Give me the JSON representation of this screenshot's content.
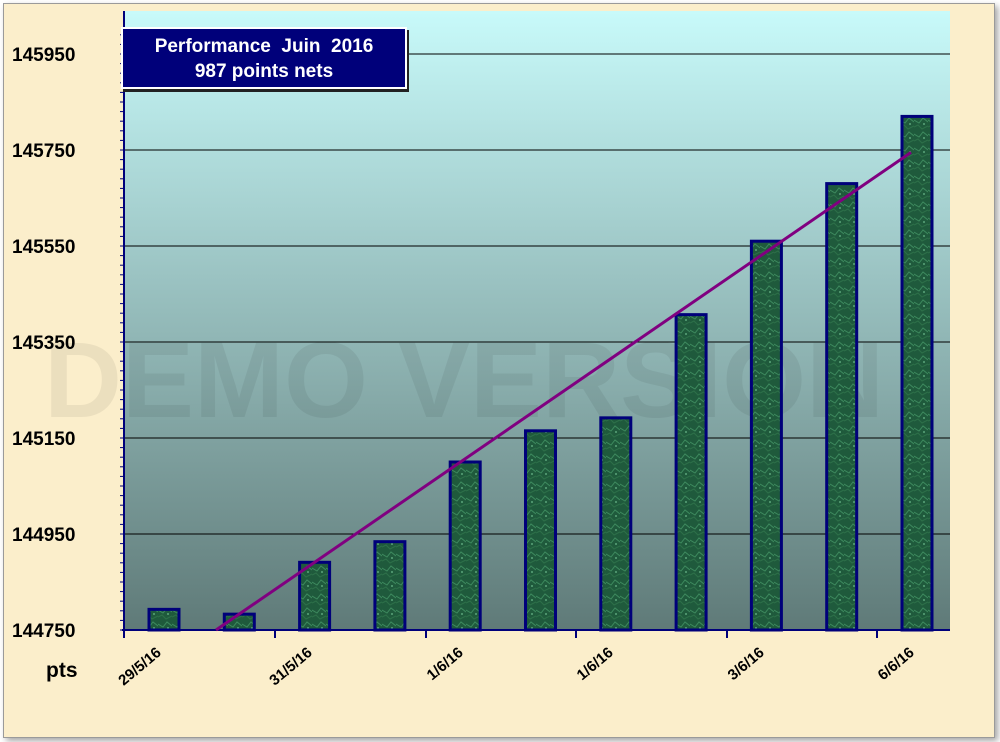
{
  "chart_data": {
    "type": "bar",
    "title": "Performance  Juin  2016",
    "subtitle": "987 points nets",
    "ylabel": "pts",
    "xlabel": "",
    "ylim": [
      144750,
      146000
    ],
    "yticks": [
      144750,
      144950,
      145150,
      145350,
      145550,
      145750,
      145950
    ],
    "xtick_labels": [
      "29/5/16",
      "31/5/16",
      "1/6/16",
      "1/6/16",
      "3/6/16",
      "6/6/16"
    ],
    "values": [
      144793,
      144783,
      144891,
      144934,
      145100,
      145165,
      145192,
      145407,
      145560,
      145680,
      145820
    ],
    "trendline": {
      "start": 144750,
      "end": 145745
    },
    "watermark": "DEMO VERSION",
    "grid": true,
    "legend": "none",
    "colors": {
      "bar_fill": "#1f5a3c",
      "bar_edge": "#00007a",
      "trend": "#800080",
      "plot_top": "#c8fafa",
      "plot_bottom": "#5f7a78"
    }
  }
}
